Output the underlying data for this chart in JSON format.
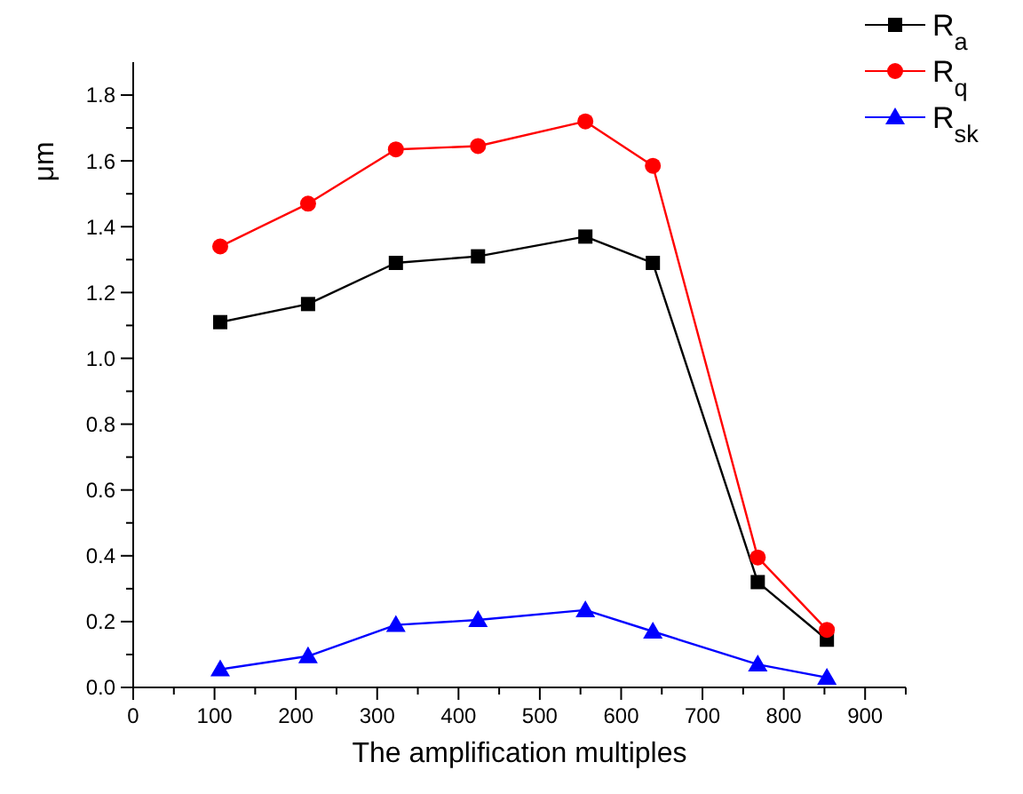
{
  "chart_data": {
    "type": "line",
    "xlabel": "The amplification multiples",
    "ylabel": "μm",
    "x": [
      107,
      215,
      323,
      424,
      556,
      639,
      768,
      853
    ],
    "xlim": [
      0,
      950
    ],
    "xticks": [
      0,
      {
        "value": 50,
        "label": null
      },
      100,
      {
        "value": 150,
        "label": null
      },
      200,
      {
        "value": 250,
        "label": null
      },
      300,
      {
        "value": 350,
        "label": null
      },
      400,
      {
        "value": 450,
        "label": null
      },
      500,
      {
        "value": 550,
        "label": null
      },
      600,
      {
        "value": 650,
        "label": null
      },
      700,
      {
        "value": 750,
        "label": null
      },
      800,
      {
        "value": 850,
        "label": null
      },
      900,
      {
        "value": 950,
        "label": null
      }
    ],
    "ylim": [
      0,
      1.9
    ],
    "yticks": [
      {
        "value": 0,
        "label": "0.0"
      },
      {
        "value": 0.1,
        "label": null
      },
      {
        "value": 0.2,
        "label": "0.2"
      },
      {
        "value": 0.3,
        "label": null
      },
      {
        "value": 0.4,
        "label": "0.4"
      },
      {
        "value": 0.5,
        "label": null
      },
      {
        "value": 0.6,
        "label": "0.6"
      },
      {
        "value": 0.7,
        "label": null
      },
      {
        "value": 0.8,
        "label": "0.8"
      },
      {
        "value": 0.9,
        "label": null
      },
      {
        "value": 1.0,
        "label": "1.0"
      },
      {
        "value": 1.1,
        "label": null
      },
      {
        "value": 1.2,
        "label": "1.2"
      },
      {
        "value": 1.3,
        "label": null
      },
      {
        "value": 1.4,
        "label": "1.4"
      },
      {
        "value": 1.5,
        "label": null
      },
      {
        "value": 1.6,
        "label": "1.6"
      },
      {
        "value": 1.7,
        "label": null
      },
      {
        "value": 1.8,
        "label": "1.8"
      }
    ],
    "legend": "top right",
    "grid": false,
    "series": [
      {
        "name": "R$_{a}$",
        "color": "#000000",
        "marker": "square",
        "values": [
          1.11,
          1.165,
          1.29,
          1.31,
          1.37,
          1.29,
          0.32,
          0.145
        ]
      },
      {
        "name": "R$_{q}$",
        "color": "#ff0000",
        "marker": "circle",
        "values": [
          1.34,
          1.47,
          1.635,
          1.645,
          1.72,
          1.585,
          0.395,
          0.175
        ]
      },
      {
        "name": "R$_{sk}$",
        "color": "#0000ff",
        "marker": "triangle",
        "values": [
          0.055,
          0.095,
          0.19,
          0.205,
          0.235,
          0.17,
          0.07,
          0.03
        ]
      }
    ]
  }
}
